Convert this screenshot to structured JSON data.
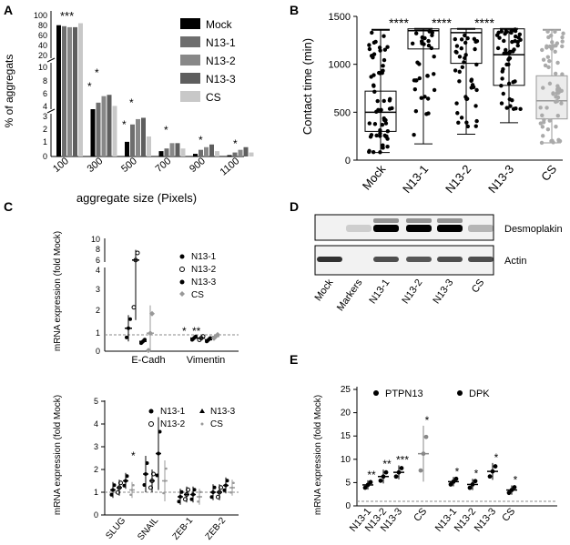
{
  "panels": [
    {
      "letter": "A"
    },
    {
      "letter": "B"
    },
    {
      "letter": "C"
    },
    {
      "letter": "D"
    },
    {
      "letter": "E"
    }
  ],
  "colors": {
    "mock": "#000000",
    "n13_1": "#6e6e6e",
    "n13_2": "#888888",
    "n13_3": "#5e5e5e",
    "cs": "#c8c8c8"
  },
  "chart_data": [
    {
      "panel": "A",
      "type": "bar",
      "ylabel": "% of aggregats",
      "xlabel": "aggregate size (Pixels)",
      "categories": [
        "100",
        "300",
        "500",
        "700",
        "900",
        "1100"
      ],
      "legend": [
        "Mock",
        "N13-1",
        "N13-2",
        "N13-3",
        "CS"
      ],
      "broken_axis_segments": [
        {
          "range": [
            0,
            3
          ],
          "ticks": [
            "0",
            "1",
            "2",
            "3"
          ]
        },
        {
          "range": [
            4,
            10
          ],
          "ticks": [
            "4",
            "6",
            "8",
            "10"
          ]
        },
        {
          "range": [
            20,
            100
          ],
          "ticks": [
            "20",
            "40",
            "60",
            "80",
            "100"
          ]
        }
      ],
      "series": [
        {
          "name": "Mock",
          "values": [
            86,
            4.0,
            1.1,
            0.4,
            0.2,
            0.1
          ]
        },
        {
          "name": "N13-1",
          "values": [
            84,
            5.0,
            2.4,
            0.6,
            0.5,
            0.3
          ]
        },
        {
          "name": "N13-2",
          "values": [
            82,
            6.0,
            2.8,
            1.0,
            0.7,
            0.5
          ]
        },
        {
          "name": "N13-3",
          "values": [
            82,
            6.2,
            2.9,
            1.0,
            0.9,
            0.7
          ]
        },
        {
          "name": "CS",
          "values": [
            90,
            4.5,
            1.5,
            0.6,
            0.4,
            0.3
          ]
        }
      ],
      "annotations": [
        "***",
        "*",
        "*",
        "*",
        "*",
        "*",
        "*",
        "*"
      ]
    },
    {
      "panel": "B",
      "type": "box",
      "ylabel": "Contact time (min)",
      "ylim": [
        0,
        1500
      ],
      "yticks": [
        "0",
        "500",
        "1000",
        "1500"
      ],
      "categories": [
        "Mock",
        "N13-1",
        "N13-2",
        "N13-3",
        "CS"
      ],
      "boxes": [
        {
          "name": "Mock",
          "min": 80,
          "q1": 300,
          "median": 500,
          "q3": 720,
          "max": 1360
        },
        {
          "name": "N13-1",
          "min": 170,
          "q1": 1160,
          "median": 1350,
          "q3": 1370,
          "max": 1370
        },
        {
          "name": "N13-2",
          "min": 270,
          "q1": 1010,
          "median": 1330,
          "q3": 1370,
          "max": 1370
        },
        {
          "name": "N13-3",
          "min": 390,
          "q1": 780,
          "median": 1100,
          "q3": 1370,
          "max": 1370
        },
        {
          "name": "CS",
          "min": 180,
          "q1": 430,
          "median": 620,
          "q3": 880,
          "max": 1360
        }
      ],
      "annotations": [
        "****",
        "****",
        "****"
      ]
    },
    {
      "panel": "C-top",
      "type": "scatter",
      "ylabel": "mRNA expression (fold Mock)",
      "yticks": [
        "0",
        "1",
        "2",
        "3",
        "4",
        "6",
        "8",
        "10"
      ],
      "categories": [
        "E-Cadh",
        "Vimentin"
      ],
      "legend": [
        "N13-1",
        "N13-2",
        "N13-3",
        "CS"
      ],
      "means": {
        "E-Cadh": [
          1.4,
          4.5,
          0.6,
          1.1
        ],
        "Vimentin": [
          0.8,
          0.8,
          0.7,
          0.9
        ]
      },
      "annotations": [
        "*",
        "**"
      ]
    },
    {
      "panel": "C-bottom",
      "type": "scatter",
      "ylabel": "mRNA expression (fold Mock)",
      "ylim": [
        0,
        5
      ],
      "yticks": [
        "0",
        "1",
        "2",
        "3",
        "4",
        "5"
      ],
      "categories": [
        "SLUG",
        "SNAIL",
        "ZEB-1",
        "ZEB-2"
      ],
      "legend": [
        "N13-1",
        "N13-2",
        "N13-3",
        "CS"
      ],
      "means": {
        "SLUG": [
          1.1,
          1.2,
          1.5,
          1.1
        ],
        "SNAIL": [
          1.8,
          1.5,
          2.7,
          1.5
        ],
        "ZEB-1": [
          0.8,
          0.9,
          0.9,
          0.8
        ],
        "ZEB-2": [
          1.0,
          1.0,
          1.3,
          1.2
        ]
      },
      "annotations": [
        "*"
      ]
    },
    {
      "panel": "D",
      "type": "table",
      "rows": [
        "Desmoplakin",
        "Actin"
      ],
      "lanes": [
        "Mock",
        "Markers",
        "N13-1",
        "N13-2",
        "N13-3",
        "CS"
      ]
    },
    {
      "panel": "E",
      "type": "scatter",
      "ylabel": "mRNA expression (fold Mock)",
      "ylim": [
        0,
        25
      ],
      "yticks": [
        "0",
        "5",
        "10",
        "15",
        "20",
        "25"
      ],
      "categories": [
        "N13-1",
        "N13-2",
        "N13-3",
        "CS",
        "N13-1",
        "N13-2",
        "N13-3",
        "CS"
      ],
      "legend": [
        "PTPN13",
        "DPK"
      ],
      "means": [
        4.5,
        6.3,
        7.2,
        11.2,
        5.2,
        4.6,
        7.4,
        3.4
      ],
      "annotations": [
        "**",
        "**",
        "***",
        "*",
        "*",
        "*",
        "*",
        "*"
      ]
    }
  ]
}
